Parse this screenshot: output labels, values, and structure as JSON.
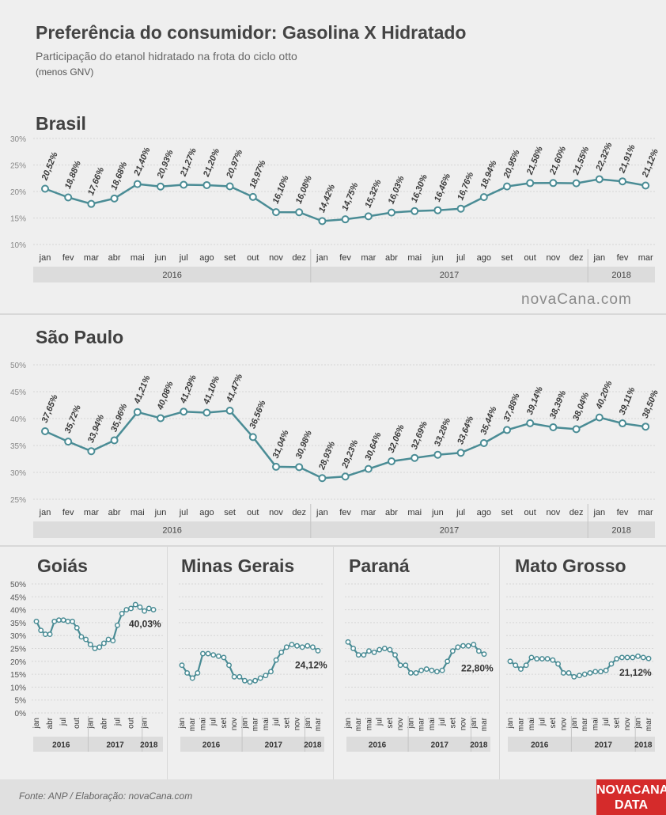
{
  "header": {
    "title": "Preferência do consumidor: Gasolina X Hidratado",
    "subtitle": "Participação do etanol hidratado na frota do ciclo otto",
    "note": "(menos GNV)"
  },
  "brand": "novaCana.com",
  "footer": {
    "source": "Fonte: ANP / Elaboração: novaCana.com",
    "logo_line1": "NOVACANA",
    "logo_line2": "DATA"
  },
  "colors": {
    "line": "#4a8c95",
    "grid": "#d6d6d6",
    "background": "#efefef",
    "logo": "#d52b2b"
  },
  "chart_data": [
    {
      "type": "line",
      "title": "Brasil",
      "x": [
        "jan",
        "fev",
        "mar",
        "abr",
        "mai",
        "jun",
        "jul",
        "ago",
        "set",
        "out",
        "nov",
        "dez",
        "jan",
        "fev",
        "mar",
        "abr",
        "mai",
        "jun",
        "jul",
        "ago",
        "set",
        "out",
        "nov",
        "dez",
        "jan",
        "fev",
        "mar"
      ],
      "years": [
        {
          "label": "2016",
          "span": 12
        },
        {
          "label": "2017",
          "span": 12
        },
        {
          "label": "2018",
          "span": 3
        }
      ],
      "values": [
        20.52,
        18.88,
        17.66,
        18.68,
        21.4,
        20.93,
        21.27,
        21.2,
        20.97,
        18.97,
        16.1,
        16.08,
        14.42,
        14.75,
        15.32,
        16.03,
        16.3,
        16.46,
        16.76,
        18.94,
        20.95,
        21.58,
        21.6,
        21.55,
        22.32,
        21.91,
        21.12
      ],
      "labels": [
        "20,52%",
        "18,88%",
        "17,66%",
        "18,68%",
        "21,40%",
        "20,93%",
        "21,27%",
        "21,20%",
        "20,97%",
        "18,97%",
        "16,10%",
        "16,08%",
        "14,42%",
        "14,75%",
        "15,32%",
        "16,03%",
        "16,30%",
        "16,46%",
        "16,76%",
        "18,94%",
        "20,95%",
        "21,58%",
        "21,60%",
        "21,55%",
        "22,32%",
        "21,91%",
        "21,12%"
      ],
      "ylim": [
        10,
        30
      ],
      "yticks": [
        "10%",
        "15%",
        "20%",
        "25%",
        "30%"
      ],
      "grid": true
    },
    {
      "type": "line",
      "title": "São Paulo",
      "x": [
        "jan",
        "fev",
        "mar",
        "abr",
        "mai",
        "jun",
        "jul",
        "ago",
        "set",
        "out",
        "nov",
        "dez",
        "jan",
        "fev",
        "mar",
        "abr",
        "mai",
        "jun",
        "jul",
        "ago",
        "set",
        "out",
        "nov",
        "dez",
        "jan",
        "fev",
        "mar"
      ],
      "years": [
        {
          "label": "2016",
          "span": 12
        },
        {
          "label": "2017",
          "span": 12
        },
        {
          "label": "2018",
          "span": 3
        }
      ],
      "values": [
        37.65,
        35.72,
        33.94,
        35.96,
        41.21,
        40.08,
        41.29,
        41.1,
        41.47,
        36.56,
        31.04,
        30.98,
        28.93,
        29.23,
        30.64,
        32.06,
        32.69,
        33.28,
        33.64,
        35.44,
        37.88,
        39.14,
        38.39,
        38.04,
        40.2,
        39.11,
        38.5
      ],
      "labels": [
        "37,65%",
        "35,72%",
        "33,94%",
        "35,96%",
        "41,21%",
        "40,08%",
        "41,29%",
        "41,10%",
        "41,47%",
        "36,56%",
        "31,04%",
        "30,98%",
        "28,93%",
        "29,23%",
        "30,64%",
        "32,06%",
        "32,69%",
        "33,28%",
        "33,64%",
        "35,44%",
        "37,88%",
        "39,14%",
        "38,39%",
        "38,04%",
        "40,20%",
        "39,11%",
        "38,50%"
      ],
      "ylim": [
        25,
        50
      ],
      "yticks": [
        "25%",
        "30%",
        "35%",
        "40%",
        "45%",
        "50%"
      ],
      "grid": true
    },
    {
      "type": "line",
      "title": "Goiás",
      "xticks": [
        "jan",
        "abr",
        "jul",
        "out",
        "jan",
        "abr",
        "jul",
        "out",
        "jan"
      ],
      "years": [
        {
          "label": "2016",
          "span": 12
        },
        {
          "label": "2017",
          "span": 12
        },
        {
          "label": "2018",
          "span": 3
        }
      ],
      "values": [
        35.5,
        32,
        30.5,
        30.5,
        35.5,
        36,
        36,
        35.5,
        35.5,
        33,
        29.5,
        28.5,
        26.5,
        25,
        25.5,
        27,
        28.5,
        28,
        34,
        38.5,
        40,
        40.5,
        42,
        41,
        39.5,
        40.5,
        40.03
      ],
      "last_label": "40,03%",
      "ylim": [
        0,
        50
      ],
      "yticks": [
        "0%",
        "5%",
        "10%",
        "15%",
        "20%",
        "25%",
        "30%",
        "35%",
        "40%",
        "45%",
        "50%"
      ],
      "grid": true
    },
    {
      "type": "line",
      "title": "Minas Gerais",
      "xticks": [
        "jan",
        "mar",
        "mai",
        "jul",
        "set",
        "nov",
        "jan",
        "mar",
        "mai",
        "jul",
        "set",
        "nov",
        "jan",
        "mar"
      ],
      "years": [
        {
          "label": "2016",
          "span": 12
        },
        {
          "label": "2017",
          "span": 12
        },
        {
          "label": "2018",
          "span": 3
        }
      ],
      "values": [
        18.5,
        15.5,
        13.5,
        15.5,
        23,
        23,
        22.5,
        22,
        21.5,
        18.5,
        14,
        14,
        12.5,
        12,
        12.5,
        13.5,
        14.5,
        16,
        20.5,
        23.5,
        25.5,
        26.5,
        26,
        25.5,
        26,
        25.5,
        24.12
      ],
      "last_label": "24,12%",
      "ylim": [
        0,
        50
      ],
      "grid": true
    },
    {
      "type": "line",
      "title": "Paraná",
      "xticks": [
        "jan",
        "mar",
        "mai",
        "jul",
        "set",
        "nov",
        "jan",
        "mar",
        "mai",
        "jul",
        "set",
        "nov",
        "jan",
        "mar"
      ],
      "years": [
        {
          "label": "2016",
          "span": 12
        },
        {
          "label": "2017",
          "span": 12
        },
        {
          "label": "2018",
          "span": 3
        }
      ],
      "values": [
        27.5,
        25,
        22.5,
        22.5,
        24,
        23.5,
        24.5,
        25,
        24.5,
        22.5,
        18.5,
        18.5,
        15.5,
        15.5,
        16.5,
        17,
        16.5,
        16,
        16.5,
        20,
        24,
        25.5,
        26,
        26,
        26.5,
        24,
        22.8
      ],
      "last_label": "22,80%",
      "ylim": [
        0,
        50
      ],
      "grid": true
    },
    {
      "type": "line",
      "title": "Mato Grosso",
      "xticks": [
        "jan",
        "mar",
        "mai",
        "jul",
        "set",
        "nov",
        "jan",
        "mar",
        "mai",
        "jul",
        "set",
        "nov",
        "jan",
        "mar"
      ],
      "years": [
        {
          "label": "2016",
          "span": 12
        },
        {
          "label": "2017",
          "span": 12
        },
        {
          "label": "2018",
          "span": 3
        }
      ],
      "values": [
        20,
        18.5,
        17,
        18.5,
        21.5,
        21,
        21,
        21,
        20.5,
        19,
        15.5,
        15.5,
        14,
        14.5,
        15,
        15.5,
        16,
        16,
        16.5,
        19,
        21,
        21.5,
        21.5,
        21.5,
        22,
        21.5,
        21.12
      ],
      "last_label": "21,12%",
      "ylim": [
        0,
        50
      ],
      "grid": true
    }
  ]
}
